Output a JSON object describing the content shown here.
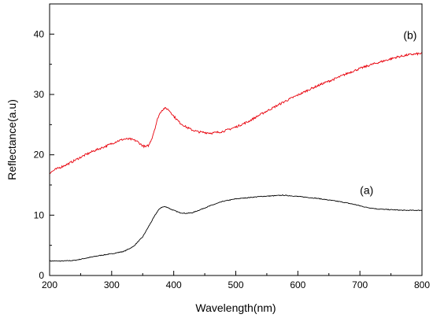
{
  "chart_data": {
    "type": "line",
    "xlabel": "Wavelength(nm)",
    "ylabel": "Reflectance(a.u)",
    "xlim": [
      200,
      800
    ],
    "ylim": [
      0,
      45
    ],
    "xticks": [
      200,
      300,
      400,
      500,
      600,
      700,
      800
    ],
    "yticks": [
      0,
      10,
      20,
      30,
      40
    ],
    "x_tick_labels": [
      "200",
      "300",
      "400",
      "500",
      "600",
      "700",
      "800"
    ],
    "y_tick_labels": [
      "0",
      "10",
      "20",
      "30",
      "40"
    ],
    "grid": false,
    "legend": "none",
    "annotations": [
      {
        "text": "(a)",
        "x": 700,
        "y": 13.5
      },
      {
        "text": "(b)",
        "x": 770,
        "y": 39.2
      }
    ],
    "series": [
      {
        "label": "(a)",
        "color": "#000000",
        "x": [
          200,
          220,
          240,
          260,
          280,
          300,
          320,
          335,
          350,
          360,
          370,
          375,
          380,
          385,
          390,
          395,
          400,
          410,
          420,
          430,
          440,
          460,
          480,
          500,
          520,
          540,
          560,
          575,
          590,
          610,
          630,
          650,
          670,
          690,
          710,
          730,
          750,
          770,
          790,
          800
        ],
        "y": [
          2.4,
          2.4,
          2.5,
          2.9,
          3.3,
          3.6,
          4.0,
          4.8,
          6.4,
          8.2,
          10.0,
          10.8,
          11.3,
          11.4,
          11.3,
          11.0,
          10.8,
          10.4,
          10.3,
          10.4,
          10.8,
          11.6,
          12.3,
          12.7,
          12.9,
          13.1,
          13.2,
          13.3,
          13.2,
          13.0,
          12.8,
          12.5,
          12.2,
          11.8,
          11.3,
          11.0,
          10.9,
          10.8,
          10.8,
          10.8
        ]
      },
      {
        "label": "(b)",
        "color": "#e8000b",
        "x": [
          200,
          210,
          230,
          250,
          270,
          290,
          310,
          320,
          330,
          340,
          350,
          355,
          360,
          365,
          370,
          375,
          380,
          385,
          390,
          395,
          400,
          410,
          420,
          430,
          440,
          450,
          460,
          470,
          480,
          500,
          520,
          540,
          560,
          580,
          600,
          620,
          640,
          660,
          680,
          700,
          720,
          740,
          760,
          780,
          800
        ],
        "y": [
          17.0,
          17.6,
          18.5,
          19.6,
          20.6,
          21.4,
          22.3,
          22.6,
          22.6,
          22.3,
          21.5,
          21.3,
          21.6,
          22.8,
          24.5,
          26.3,
          27.3,
          27.7,
          27.6,
          27.1,
          26.4,
          25.3,
          24.6,
          24.1,
          23.8,
          23.7,
          23.6,
          23.7,
          23.9,
          24.6,
          25.5,
          26.7,
          27.8,
          28.9,
          29.9,
          30.9,
          31.8,
          32.6,
          33.5,
          34.3,
          35.0,
          35.6,
          36.2,
          36.6,
          36.8
        ]
      }
    ]
  }
}
